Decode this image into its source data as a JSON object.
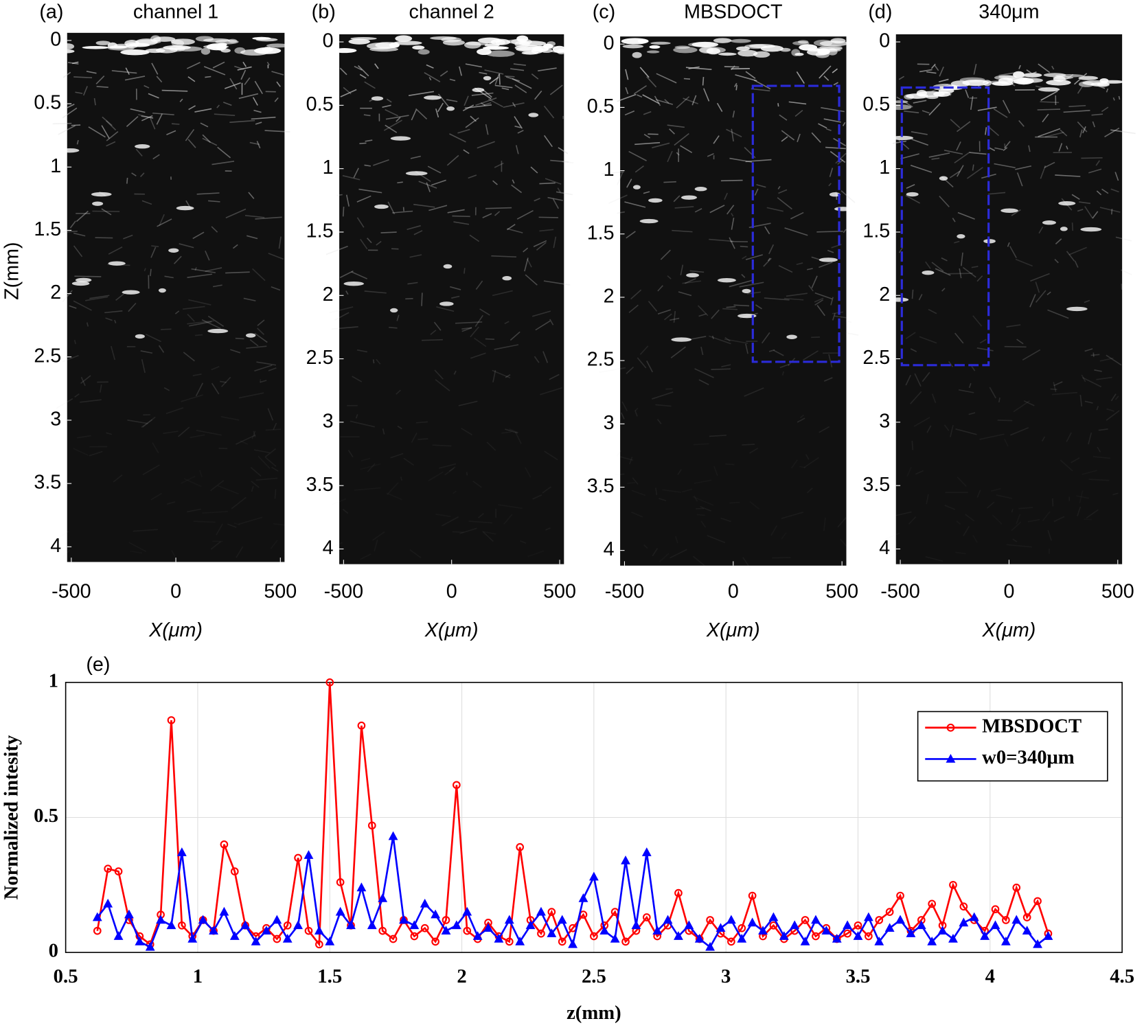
{
  "chart_data": [
    {
      "type": "image",
      "label": "(a)",
      "title": "channel 1",
      "xlabel": "X(μm)",
      "ylabel": "Z(mm)",
      "xlim": [
        -520,
        520
      ],
      "ylim": [
        -0.06,
        4.12
      ],
      "y_inverted": true,
      "xticks": [
        -500,
        0,
        500
      ],
      "yticks": [
        0,
        0.5,
        1,
        1.5,
        2,
        2.5,
        3,
        3.5,
        4
      ]
    },
    {
      "type": "image",
      "label": "(b)",
      "title": "channel 2",
      "xlabel": "X(μm)",
      "xlim": [
        -520,
        520
      ],
      "ylim": [
        -0.06,
        4.12
      ],
      "y_inverted": true,
      "xticks": [
        -500,
        0,
        500
      ],
      "yticks": [
        0,
        0.5,
        1,
        1.5,
        2,
        2.5,
        3,
        3.5,
        4
      ]
    },
    {
      "type": "image",
      "label": "(c)",
      "title": "MBSDOCT",
      "xlabel": "X(μm)",
      "xlim": [
        -520,
        520
      ],
      "ylim": [
        -0.06,
        4.12
      ],
      "y_inverted": true,
      "xticks": [
        -500,
        0,
        500
      ],
      "yticks": [
        0,
        0.5,
        1,
        1.5,
        2,
        2.5,
        3,
        3.5,
        4
      ],
      "box": {
        "x": [
          90,
          487
        ],
        "y": [
          0.33,
          2.51
        ],
        "color": "#2b2bd9"
      }
    },
    {
      "type": "image",
      "label": "(d)",
      "title": "340μm",
      "xlabel": "X(μm)",
      "xlim": [
        -520,
        520
      ],
      "ylim": [
        -0.06,
        4.12
      ],
      "y_inverted": true,
      "xticks": [
        -500,
        0,
        500
      ],
      "yticks": [
        0,
        0.5,
        1,
        1.5,
        2,
        2.5,
        3,
        3.5,
        4
      ],
      "box": {
        "x": [
          -493,
          -94
        ],
        "y": [
          0.36,
          2.55
        ],
        "color": "#2b2bd9"
      }
    },
    {
      "type": "line",
      "label": "(e)",
      "xlabel": "z(mm)",
      "ylabel": "Normalized intesity",
      "xlim": [
        0.5,
        4.5
      ],
      "ylim": [
        0,
        1
      ],
      "xticks": [
        0.5,
        1,
        1.5,
        2,
        2.5,
        3,
        3.5,
        4,
        4.5
      ],
      "yticks": [
        0,
        0.5,
        1
      ],
      "grid": true,
      "legend": "upper right",
      "x": [
        0.62,
        0.66,
        0.7,
        0.74,
        0.78,
        0.82,
        0.86,
        0.9,
        0.94,
        0.98,
        1.02,
        1.06,
        1.1,
        1.14,
        1.18,
        1.22,
        1.26,
        1.3,
        1.34,
        1.38,
        1.42,
        1.46,
        1.5,
        1.54,
        1.58,
        1.62,
        1.66,
        1.7,
        1.74,
        1.78,
        1.82,
        1.86,
        1.9,
        1.94,
        1.98,
        2.02,
        2.06,
        2.1,
        2.14,
        2.18,
        2.22,
        2.26,
        2.3,
        2.34,
        2.38,
        2.42,
        2.46,
        2.5,
        2.54,
        2.58,
        2.62,
        2.66,
        2.7,
        2.74,
        2.78,
        2.82,
        2.86,
        2.9,
        2.94,
        2.98,
        3.02,
        3.06,
        3.1,
        3.14,
        3.18,
        3.22,
        3.26,
        3.3,
        3.34,
        3.38,
        3.42,
        3.46,
        3.5,
        3.54,
        3.58,
        3.62,
        3.66,
        3.7,
        3.74,
        3.78,
        3.82,
        3.86,
        3.9,
        3.94,
        3.98,
        4.02,
        4.06,
        4.1,
        4.14,
        4.18,
        4.22
      ],
      "series": [
        {
          "name": "MBSDOCT",
          "color": "#ff0000",
          "marker": "circle",
          "values": [
            0.08,
            0.31,
            0.3,
            0.12,
            0.06,
            0.03,
            0.14,
            0.86,
            0.1,
            0.06,
            0.12,
            0.08,
            0.4,
            0.3,
            0.1,
            0.06,
            0.09,
            0.05,
            0.1,
            0.35,
            0.08,
            0.03,
            1.0,
            0.26,
            0.1,
            0.84,
            0.47,
            0.08,
            0.05,
            0.12,
            0.06,
            0.09,
            0.04,
            0.12,
            0.62,
            0.08,
            0.05,
            0.11,
            0.06,
            0.04,
            0.39,
            0.12,
            0.07,
            0.15,
            0.04,
            0.09,
            0.14,
            0.06,
            0.1,
            0.15,
            0.04,
            0.08,
            0.13,
            0.06,
            0.1,
            0.22,
            0.08,
            0.05,
            0.12,
            0.07,
            0.04,
            0.09,
            0.21,
            0.06,
            0.1,
            0.05,
            0.08,
            0.12,
            0.06,
            0.09,
            0.05,
            0.07,
            0.1,
            0.06,
            0.12,
            0.15,
            0.21,
            0.08,
            0.12,
            0.18,
            0.1,
            0.25,
            0.17,
            0.12,
            0.08,
            0.16,
            0.12,
            0.24,
            0.13,
            0.19,
            0.07
          ]
        },
        {
          "name": "w0=340μm",
          "color": "#0000ff",
          "marker": "triangle",
          "values": [
            0.13,
            0.18,
            0.06,
            0.14,
            0.04,
            0.02,
            0.12,
            0.1,
            0.37,
            0.05,
            0.12,
            0.08,
            0.15,
            0.06,
            0.1,
            0.04,
            0.08,
            0.12,
            0.05,
            0.1,
            0.36,
            0.08,
            0.04,
            0.15,
            0.1,
            0.24,
            0.1,
            0.2,
            0.43,
            0.12,
            0.1,
            0.18,
            0.14,
            0.08,
            0.1,
            0.15,
            0.06,
            0.09,
            0.05,
            0.12,
            0.04,
            0.1,
            0.15,
            0.07,
            0.12,
            0.03,
            0.2,
            0.28,
            0.08,
            0.05,
            0.34,
            0.1,
            0.37,
            0.08,
            0.12,
            0.06,
            0.1,
            0.05,
            0.02,
            0.09,
            0.12,
            0.05,
            0.11,
            0.08,
            0.13,
            0.06,
            0.1,
            0.04,
            0.12,
            0.08,
            0.05,
            0.1,
            0.06,
            0.13,
            0.04,
            0.09,
            0.12,
            0.07,
            0.1,
            0.04,
            0.08,
            0.05,
            0.11,
            0.13,
            0.06,
            0.1,
            0.04,
            0.12,
            0.08,
            0.03,
            0.06
          ]
        }
      ]
    }
  ]
}
